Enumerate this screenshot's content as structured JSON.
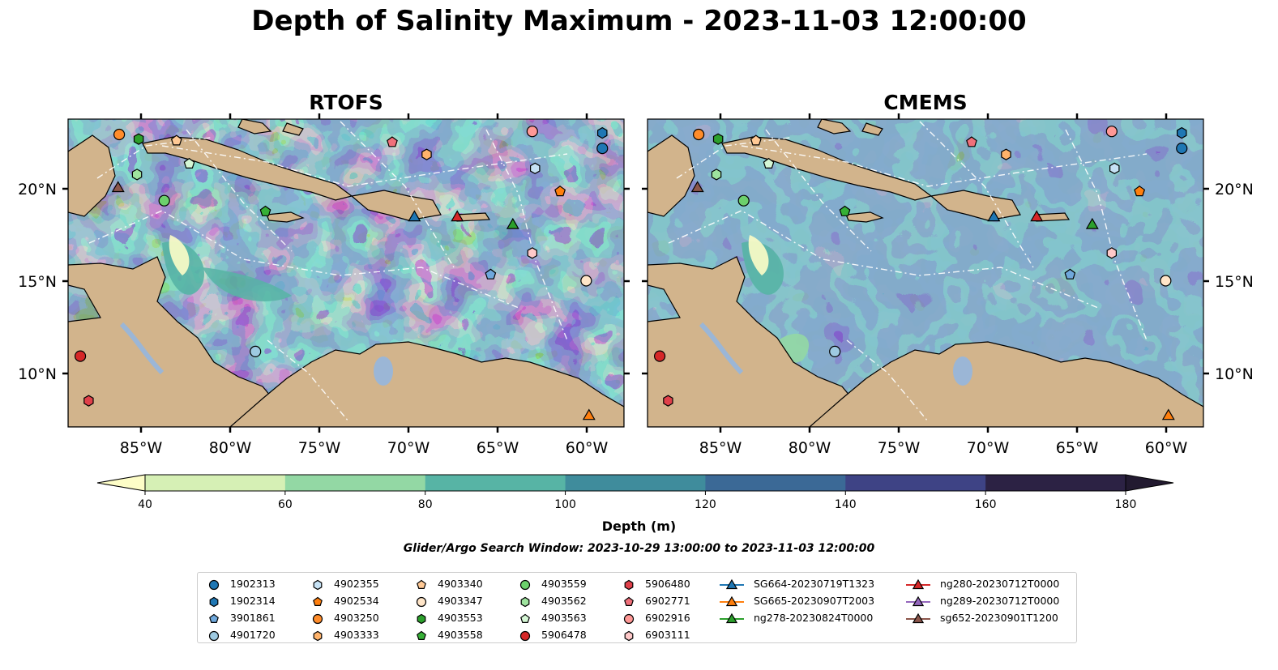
{
  "figure": {
    "suptitle": "Depth of Salinity Maximum - 2023-11-03 12:00:00",
    "panels": [
      {
        "title": "RTOFS"
      },
      {
        "title": "CMEMS"
      }
    ],
    "lon_ticks": [
      "85°W",
      "80°W",
      "75°W",
      "70°W",
      "65°W",
      "60°W"
    ],
    "lat_ticks": [
      "20°N",
      "15°N",
      "10°N"
    ],
    "colorbar": {
      "label": "Depth (m)",
      "ticks": [
        "40",
        "60",
        "80",
        "100",
        "120",
        "140",
        "160",
        "180"
      ],
      "colors": [
        "#fdfdc7",
        "#d6f0b5",
        "#93d8a4",
        "#57b4a5",
        "#3f8c9c",
        "#3b6996",
        "#3e4385",
        "#2c2244",
        "#221a30"
      ]
    },
    "search_window": "Glider/Argo Search Window: 2023-10-29 13:00:00 to 2023-11-03 12:00:00",
    "land_color": "#d2b48c",
    "water_feature_color": "#9bb6d6"
  },
  "legend": {
    "entries": [
      {
        "label": "1902313",
        "marker": "circle",
        "color": "#1f77b4"
      },
      {
        "label": "1902314",
        "marker": "hexagon",
        "color": "#1f77b4"
      },
      {
        "label": "3901861",
        "marker": "pentagon",
        "color": "#6fa8dc"
      },
      {
        "label": "4901720",
        "marker": "circle",
        "color": "#9ecae1"
      },
      {
        "label": "4902355",
        "marker": "hexagon",
        "color": "#c6e2f5"
      },
      {
        "label": "4902534",
        "marker": "pentagon",
        "color": "#ff7f0e"
      },
      {
        "label": "4903250",
        "marker": "circle",
        "color": "#ff8c2a"
      },
      {
        "label": "4903333",
        "marker": "hexagon",
        "color": "#ffb36b"
      },
      {
        "label": "4903340",
        "marker": "pentagon",
        "color": "#ffc995"
      },
      {
        "label": "4903347",
        "marker": "circle",
        "color": "#ffe5c8"
      },
      {
        "label": "4903553",
        "marker": "hexagon",
        "color": "#2ca02c"
      },
      {
        "label": "4903558",
        "marker": "pentagon",
        "color": "#36b036"
      },
      {
        "label": "4903559",
        "marker": "circle",
        "color": "#6cd06c"
      },
      {
        "label": "4903562",
        "marker": "hexagon",
        "color": "#9ee39e"
      },
      {
        "label": "4903563",
        "marker": "pentagon",
        "color": "#d5f7d5"
      },
      {
        "label": "5906478",
        "marker": "circle",
        "color": "#d62728"
      },
      {
        "label": "5906480",
        "marker": "hexagon",
        "color": "#e0404a"
      },
      {
        "label": "6902771",
        "marker": "pentagon",
        "color": "#f0707a"
      },
      {
        "label": "6902916",
        "marker": "circle",
        "color": "#ff9896"
      },
      {
        "label": "6903111",
        "marker": "hexagon",
        "color": "#ffc9c9"
      },
      {
        "label": "SG664-20230719T1323",
        "marker": "triangle-line",
        "color": "#1f77b4"
      },
      {
        "label": "SG665-20230907T2003",
        "marker": "triangle-line",
        "color": "#ff7f0e"
      },
      {
        "label": "ng278-20230824T0000",
        "marker": "triangle-line",
        "color": "#2ca02c"
      },
      {
        "label": "ng280-20230712T0000",
        "marker": "triangle-line",
        "color": "#d62728"
      },
      {
        "label": "ng289-20230712T0000",
        "marker": "triangle-line",
        "color": "#9467bd"
      },
      {
        "label": "sg652-20230901T1200",
        "marker": "triangle-line",
        "color": "#8c564b"
      }
    ]
  }
}
